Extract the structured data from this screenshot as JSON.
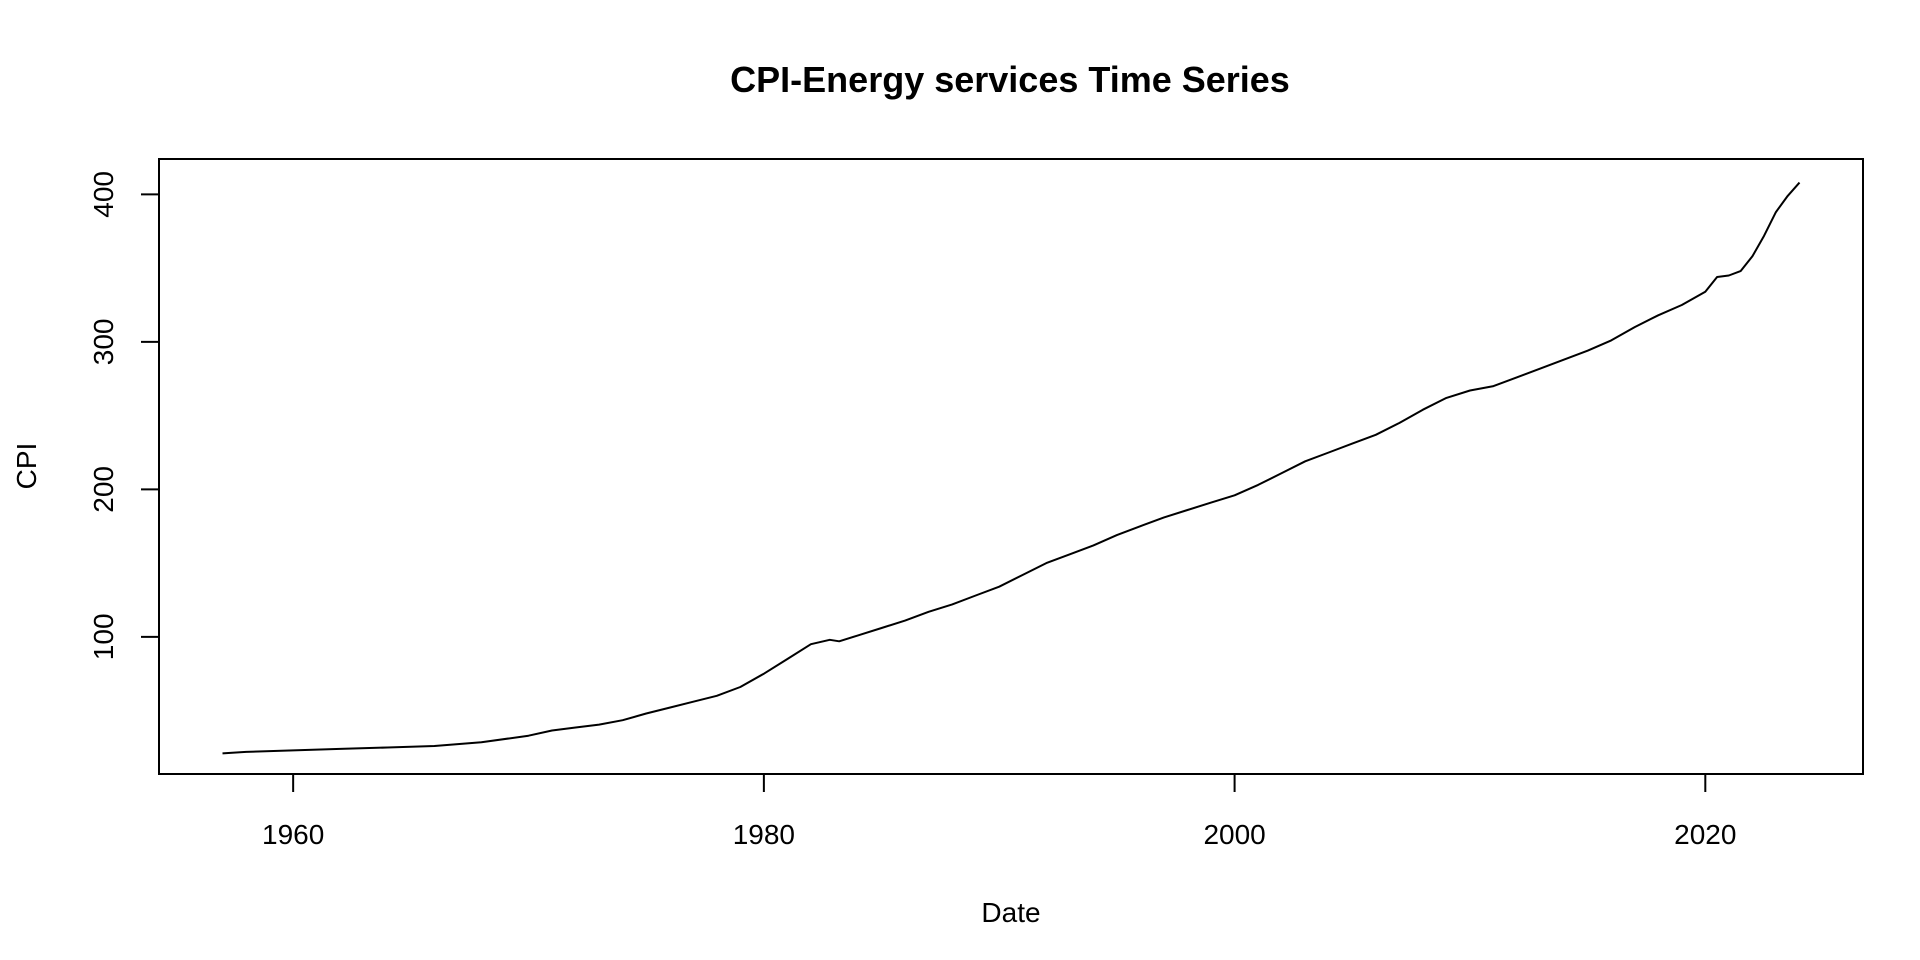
{
  "chart_data": {
    "type": "line",
    "title": "CPI-Energy services Time Series",
    "xlabel": "Date",
    "ylabel": "CPI",
    "x_ticks": [
      "1960",
      "1980",
      "2000",
      "2020"
    ],
    "y_ticks": [
      "100",
      "200",
      "300",
      "400"
    ],
    "xlim": [
      1954.3,
      2026.7
    ],
    "ylim": [
      7,
      424
    ],
    "grid": false,
    "legend": "none",
    "line_color": "#000000",
    "series": [
      {
        "x": [
          1957.0,
          1958.0,
          1960.0,
          1962.0,
          1964.0,
          1966.0,
          1968.0,
          1970.0,
          1971.0,
          1972.0,
          1973.0,
          1974.0,
          1975.0,
          1976.0,
          1977.0,
          1978.0,
          1979.0,
          1980.0,
          1981.0,
          1982.0,
          1982.8,
          1983.2,
          1984.0,
          1985.0,
          1986.0,
          1987.0,
          1988.0,
          1989.0,
          1990.0,
          1991.0,
          1992.0,
          1993.0,
          1994.0,
          1995.0,
          1996.0,
          1997.0,
          1998.0,
          1999.0,
          2000.0,
          2001.0,
          2002.0,
          2003.0,
          2004.0,
          2005.0,
          2006.0,
          2007.0,
          2008.0,
          2009.0,
          2010.0,
          2011.0,
          2012.0,
          2013.0,
          2014.0,
          2015.0,
          2016.0,
          2017.0,
          2018.0,
          2019.0,
          2020.0,
          2020.5,
          2021.0,
          2021.5,
          2022.0,
          2022.5,
          2023.0,
          2023.5,
          2024.0
        ],
        "y": [
          21,
          22,
          23,
          24,
          25,
          26,
          28.5,
          33,
          36.5,
          38.5,
          40.5,
          43.5,
          48,
          52,
          56,
          60,
          66,
          75,
          85,
          95,
          98,
          97,
          101,
          106,
          111,
          117,
          122,
          128,
          134,
          142,
          150,
          156,
          162,
          169,
          175,
          181,
          186,
          191,
          196,
          203,
          211,
          219,
          225,
          231,
          237,
          245,
          254,
          262,
          267,
          270,
          276,
          282,
          288,
          294,
          301,
          310,
          318,
          325,
          334,
          344,
          345,
          348,
          358,
          372,
          388,
          399,
          408
        ]
      }
    ]
  }
}
